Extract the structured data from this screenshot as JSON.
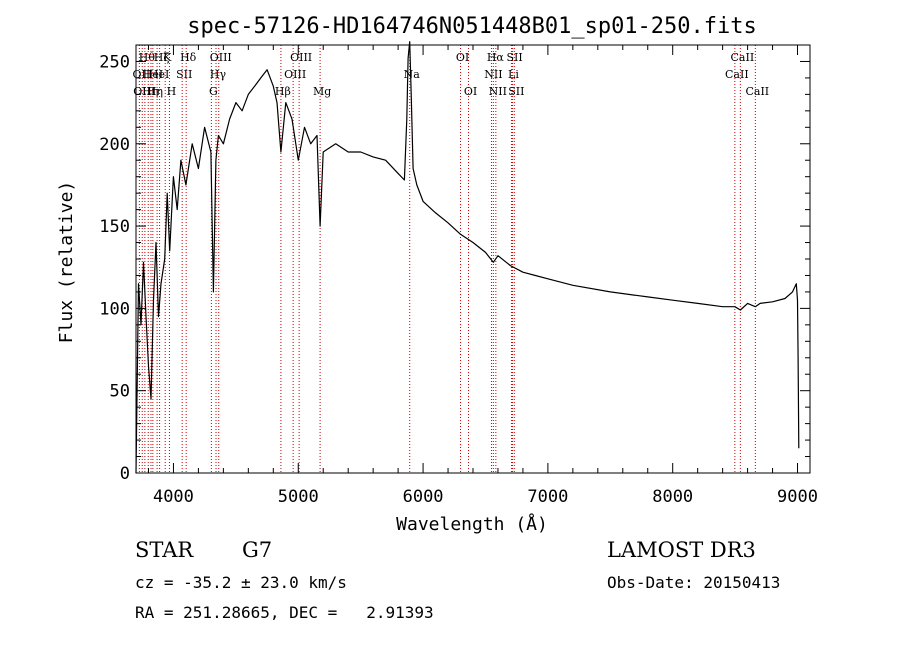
{
  "chart_data": {
    "type": "line",
    "title": "spec-57126-HD164746N051448B01_sp01-250.fits",
    "xlabel": "Wavelength (Å)",
    "ylabel": "Flux (relative)",
    "xlim": [
      3700,
      9100
    ],
    "ylim": [
      0,
      260
    ],
    "xticks": [
      4000,
      5000,
      6000,
      7000,
      8000,
      9000
    ],
    "yticks": [
      0,
      50,
      100,
      150,
      200,
      250
    ],
    "grid": false,
    "line_color": "#000000",
    "marker_color": "#cc0000",
    "series": [
      {
        "x": [
          3700,
          3720,
          3740,
          3760,
          3780,
          3800,
          3820,
          3840,
          3860,
          3880,
          3900,
          3930,
          3950,
          3970,
          4000,
          4030,
          4060,
          4100,
          4150,
          4200,
          4250,
          4300,
          4320,
          4340,
          4360,
          4400,
          4450,
          4500,
          4550,
          4600,
          4650,
          4700,
          4750,
          4800,
          4830,
          4861,
          4900,
          4950,
          5000,
          5050,
          5100,
          5150,
          5175,
          5200,
          5300,
          5400,
          5500,
          5600,
          5700,
          5800,
          5850,
          5870,
          5880,
          5893,
          5905,
          5920,
          5950,
          6000,
          6100,
          6200,
          6300,
          6400,
          6500,
          6563,
          6600,
          6700,
          6800,
          6900,
          7000,
          7200,
          7500,
          7800,
          8000,
          8200,
          8400,
          8498,
          8542,
          8600,
          8662,
          8700,
          8800,
          8900,
          8960,
          8990,
          9000,
          9005,
          9010
        ],
        "y": [
          0,
          115,
          90,
          128,
          95,
          65,
          45,
          105,
          140,
          95,
          115,
          130,
          170,
          135,
          180,
          160,
          190,
          175,
          200,
          185,
          210,
          195,
          110,
          190,
          205,
          200,
          215,
          225,
          220,
          230,
          235,
          240,
          245,
          235,
          225,
          195,
          225,
          215,
          190,
          210,
          200,
          205,
          150,
          195,
          200,
          195,
          195,
          192,
          190,
          182,
          178,
          215,
          252,
          262,
          230,
          185,
          175,
          165,
          158,
          152,
          145,
          140,
          134,
          128,
          132,
          126,
          122,
          120,
          118,
          114,
          110,
          107,
          105,
          103,
          101,
          101,
          99,
          103,
          101,
          103,
          104,
          106,
          110,
          115,
          105,
          70,
          15
        ]
      }
    ],
    "lines": [
      {
        "x": 3727,
        "label": "OII",
        "row": 2
      },
      {
        "x": 3750,
        "label": "OIII",
        "row": 3
      },
      {
        "x": 3771,
        "label": "Hθ",
        "row": 1
      },
      {
        "x": 3798,
        "label": "Hη",
        "row": 3
      },
      {
        "x": 3820,
        "label": "HeI",
        "row": 2
      },
      {
        "x": 3835,
        "label": "Hη",
        "row": 3
      },
      {
        "x": 3869,
        "label": "HeI",
        "row": 2
      },
      {
        "x": 3889,
        "label": "Hζ",
        "row": 1
      },
      {
        "x": 3934,
        "label": "K",
        "row": 1
      },
      {
        "x": 3968,
        "label": "H",
        "row": 3
      },
      {
        "x": 4070,
        "label": "SII",
        "row": 2
      },
      {
        "x": 4102,
        "label": "Hδ",
        "row": 1
      },
      {
        "x": 4304,
        "label": "G",
        "row": 3
      },
      {
        "x": 4341,
        "label": "Hγ",
        "row": 2
      },
      {
        "x": 4363,
        "label": "OIII",
        "row": 1
      },
      {
        "x": 4861,
        "label": "Hβ",
        "row": 3
      },
      {
        "x": 4959,
        "label": "OIII",
        "row": 2
      },
      {
        "x": 5007,
        "label": "OIII",
        "row": 1
      },
      {
        "x": 5175,
        "label": "Mg",
        "row": 3
      },
      {
        "x": 5893,
        "label": "Na",
        "row": 2
      },
      {
        "x": 6300,
        "label": "OI",
        "row": 1
      },
      {
        "x": 6364,
        "label": "OI",
        "row": 3
      },
      {
        "x": 6548,
        "label": "NII",
        "row": 2
      },
      {
        "x": 6563,
        "label": "Hα",
        "row": 1
      },
      {
        "x": 6583,
        "label": "NII",
        "row": 3
      },
      {
        "x": 6708,
        "label": "Li",
        "row": 2
      },
      {
        "x": 6717,
        "label": "SII",
        "row": 1
      },
      {
        "x": 6731,
        "label": "SII",
        "row": 3
      },
      {
        "x": 8498,
        "label": "CaII",
        "row": 2
      },
      {
        "x": 8542,
        "label": "CaII",
        "row": 1
      },
      {
        "x": 8662,
        "label": "CaII",
        "row": 3
      }
    ]
  },
  "info": {
    "class": "STAR",
    "subclass": "G7",
    "survey": "LAMOST DR3",
    "cz": "cz = -35.2 ± 23.0 km/s",
    "obsdate": "Obs-Date: 20150413",
    "coords": "RA = 251.28665, DEC =   2.91393"
  }
}
